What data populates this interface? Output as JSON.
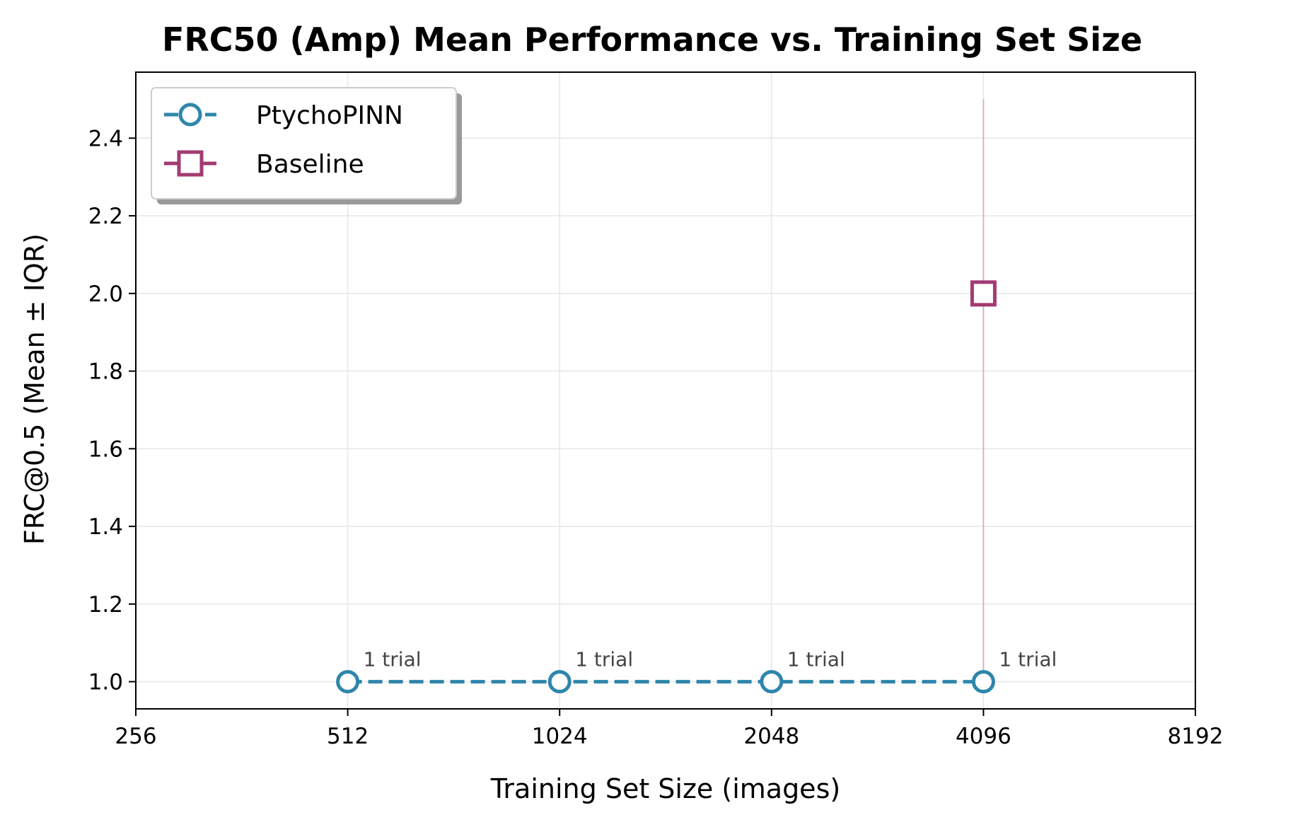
{
  "chart_data": {
    "type": "line",
    "title": "FRC50 (Amp) Mean Performance vs. Training Set Size",
    "xlabel": "Training Set Size (images)",
    "ylabel": "FRC@0.5 (Mean ± IQR)",
    "xscale": "log2",
    "xlim": [
      256,
      8192
    ],
    "ylim": [
      0.93,
      2.57
    ],
    "xticks": [
      256,
      512,
      1024,
      2048,
      4096,
      8192
    ],
    "xtick_labels": [
      "256",
      "512",
      "1024",
      "2048",
      "4096",
      "8192"
    ],
    "yticks": [
      1.0,
      1.2,
      1.4,
      1.6,
      1.8,
      2.0,
      2.2,
      2.4
    ],
    "ytick_labels": [
      "1.0",
      "1.2",
      "1.4",
      "1.6",
      "1.8",
      "2.0",
      "2.2",
      "2.4"
    ],
    "grid": true,
    "legend_position": "top-left",
    "series": [
      {
        "name": "PtychoPINN",
        "color": "#2e86ab",
        "marker": "circle",
        "linestyle": "dashed",
        "x": [
          512,
          1024,
          2048,
          4096
        ],
        "y": [
          1.0,
          1.0,
          1.0,
          1.0
        ]
      },
      {
        "name": "Baseline",
        "color": "#a23b72",
        "marker": "square",
        "linestyle": "solid",
        "x": [
          4096
        ],
        "y": [
          2.0
        ],
        "error_low": [
          1.0
        ],
        "error_high": [
          2.5
        ]
      }
    ],
    "annotations": [
      {
        "x": 512,
        "y": 1.0,
        "text": "1 trial"
      },
      {
        "x": 1024,
        "y": 1.0,
        "text": "1 trial"
      },
      {
        "x": 2048,
        "y": 1.0,
        "text": "1 trial"
      },
      {
        "x": 4096,
        "y": 1.0,
        "text": "1 trial"
      }
    ]
  }
}
